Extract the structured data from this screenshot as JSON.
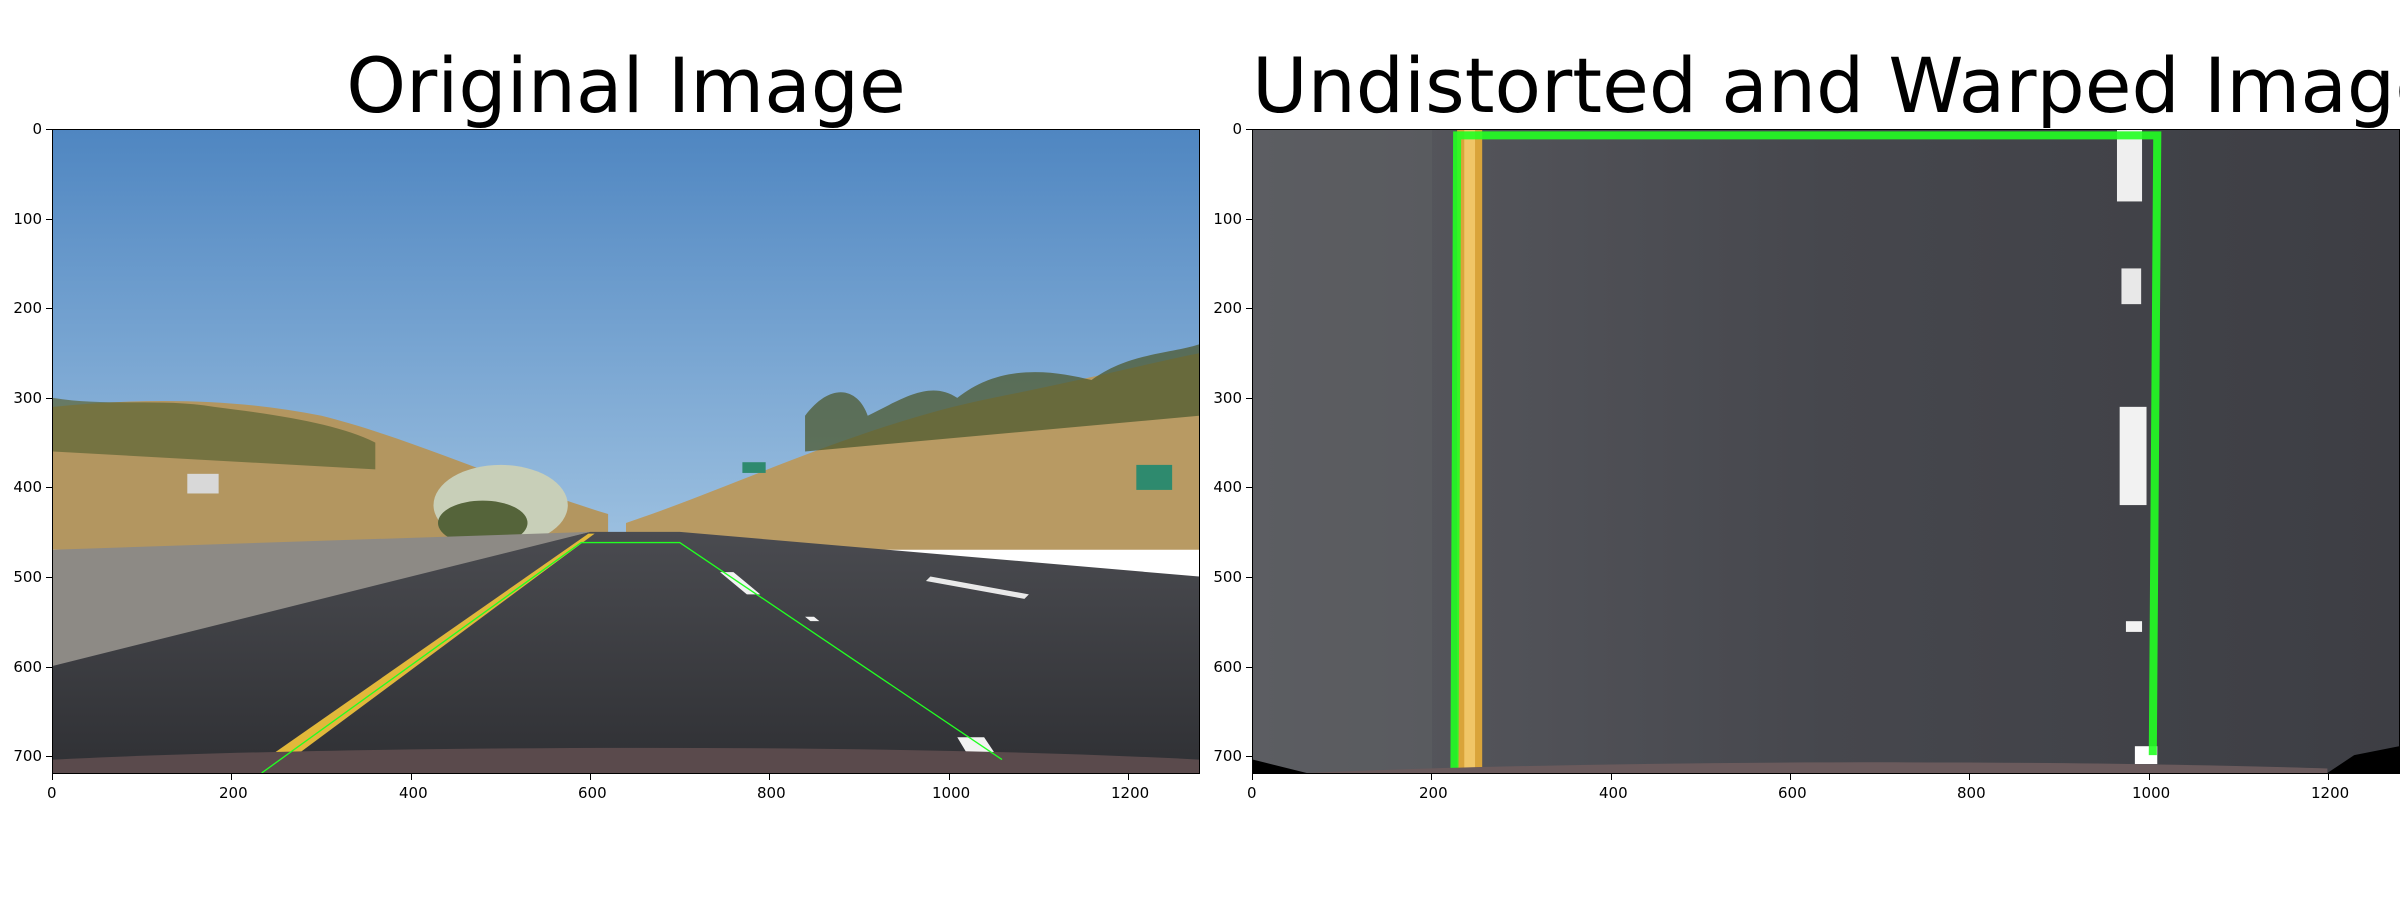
{
  "left_panel": {
    "title": "Original Image",
    "x_ticks": [
      "0",
      "200",
      "400",
      "600",
      "800",
      "1000",
      "1200"
    ],
    "y_ticks": [
      "0",
      "100",
      "200",
      "300",
      "400",
      "500",
      "600",
      "700"
    ]
  },
  "right_panel": {
    "title": "Undistorted and Warped Image",
    "x_ticks": [
      "0",
      "200",
      "400",
      "600",
      "800",
      "1000",
      "1200"
    ],
    "y_ticks": [
      "0",
      "100",
      "200",
      "300",
      "400",
      "500",
      "600",
      "700"
    ]
  },
  "image_domain": {
    "x_range": [
      0,
      1280
    ],
    "y_range": [
      0,
      720
    ]
  },
  "colors": {
    "sky": "#5a8fc6",
    "road": "#3a3b40",
    "hill": "#b89a63",
    "vegetation": "#4d5a2f",
    "lane_yellow": "#e2b83a",
    "lane_white": "#f2f2f2",
    "overlay_green": "#22ff22"
  }
}
